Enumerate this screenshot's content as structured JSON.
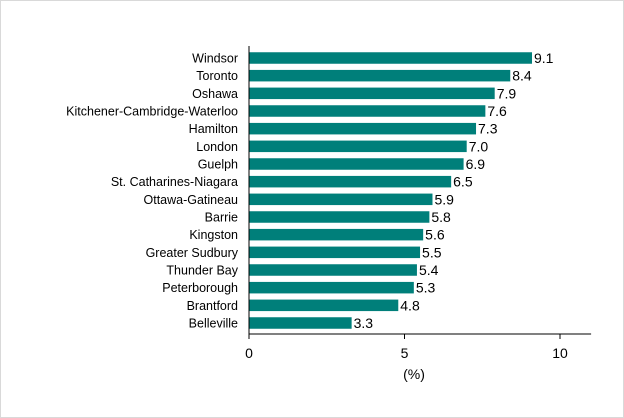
{
  "chart_data": {
    "type": "bar",
    "orientation": "horizontal",
    "categories": [
      "Windsor",
      "Toronto",
      "Oshawa",
      "Kitchener-Cambridge-Waterloo",
      "Hamilton",
      "London",
      "Guelph",
      "St. Catharines-Niagara",
      "Ottawa-Gatineau",
      "Barrie",
      "Kingston",
      "Greater Sudbury",
      "Thunder Bay",
      "Peterborough",
      "Brantford",
      "Belleville"
    ],
    "values": [
      9.1,
      8.4,
      7.9,
      7.6,
      7.3,
      7.0,
      6.9,
      6.5,
      5.9,
      5.8,
      5.6,
      5.5,
      5.4,
      5.3,
      4.8,
      3.3
    ],
    "value_labels": [
      "9.1",
      "8.4",
      "7.9",
      "7.6",
      "7.3",
      "7.0",
      "6.9",
      "6.5",
      "5.9",
      "5.8",
      "5.6",
      "5.5",
      "5.4",
      "5.3",
      "4.8",
      "3.3"
    ],
    "xlim": [
      0,
      11
    ],
    "xticks": [
      0,
      5,
      10
    ],
    "xlabel": "(%)",
    "grid": false,
    "bar_color": "#007f7a"
  }
}
